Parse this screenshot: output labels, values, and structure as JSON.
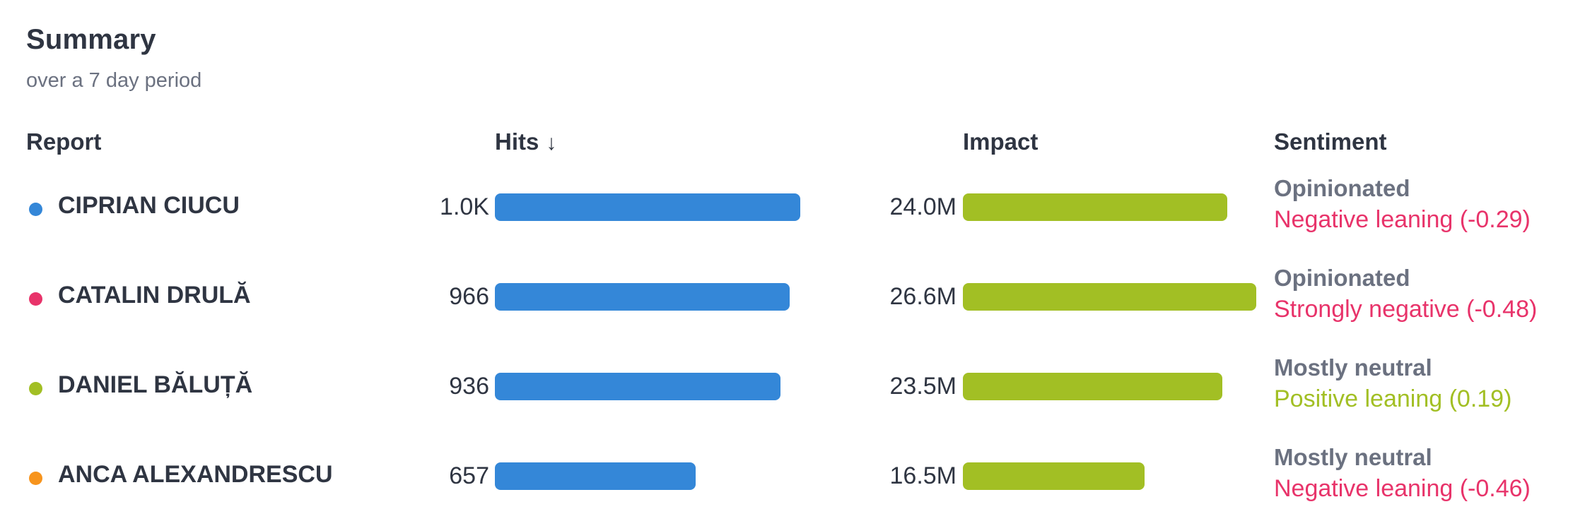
{
  "summary": {
    "title": "Summary",
    "subtitle": "over a 7 day period"
  },
  "columns": {
    "report": "Report",
    "hits": "Hits",
    "hits_sort_icon": "↓",
    "impact": "Impact",
    "sentiment": "Sentiment"
  },
  "colors": {
    "hits_bar": "#3487d8",
    "impact_bar": "#a2bf24",
    "negative": "#e8336a",
    "positive": "#a2bf24"
  },
  "rows": [
    {
      "name": "CIPRIAN CIUCU",
      "dot_color": "#3487d8",
      "hits": "1.0K",
      "hits_value": 1000,
      "impact": "24.0M",
      "impact_value": 24.0,
      "sentiment_label": "Opinionated",
      "sentiment_detail": "Negative leaning (-0.29)",
      "sentiment_color": "#e8336a"
    },
    {
      "name": "CATALIN DRULĂ",
      "dot_color": "#e8336a",
      "hits": "966",
      "hits_value": 966,
      "impact": "26.6M",
      "impact_value": 26.6,
      "sentiment_label": "Opinionated",
      "sentiment_detail": "Strongly negative (-0.48)",
      "sentiment_color": "#e8336a"
    },
    {
      "name": "DANIEL BĂLUȚĂ",
      "dot_color": "#a2bf24",
      "hits": "936",
      "hits_value": 936,
      "impact": "23.5M",
      "impact_value": 23.5,
      "sentiment_label": "Mostly neutral",
      "sentiment_detail": "Positive leaning (0.19)",
      "sentiment_color": "#a2bf24"
    },
    {
      "name": "ANCA ALEXANDRESCU",
      "dot_color": "#f7941d",
      "hits": "657",
      "hits_value": 657,
      "impact": "16.5M",
      "impact_value": 16.5,
      "sentiment_label": "Mostly neutral",
      "sentiment_detail": "Negative leaning (-0.46)",
      "sentiment_color": "#e8336a"
    }
  ]
}
